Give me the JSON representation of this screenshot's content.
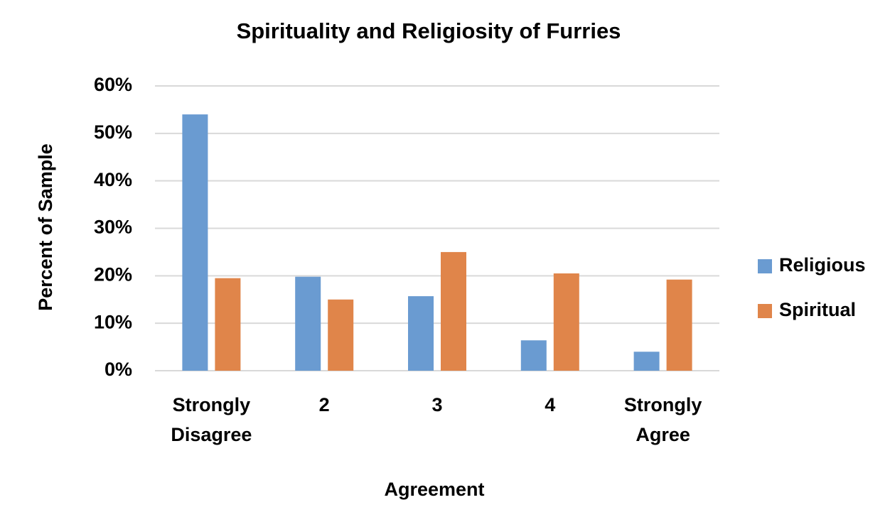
{
  "chart_data": {
    "type": "bar",
    "title": "Spirituality and Religiosity of Furries",
    "x_label": "Agreement",
    "y_label": "Percent of Sample",
    "categories": [
      "Strongly Disagree",
      "2",
      "3",
      "4",
      "Strongly Agree"
    ],
    "series": [
      {
        "name": "Religious",
        "color": "#6a9bd1",
        "values": [
          54.0,
          19.8,
          15.7,
          6.4,
          4.0
        ]
      },
      {
        "name": "Spiritual",
        "color": "#e0854a",
        "values": [
          19.5,
          15.0,
          25.0,
          20.5,
          19.2
        ]
      }
    ],
    "ylim": [
      0,
      60
    ],
    "yticks": [
      {
        "value": 0,
        "label": "0%"
      },
      {
        "value": 10,
        "label": "10%"
      },
      {
        "value": 20,
        "label": "20%"
      },
      {
        "value": 30,
        "label": "30%"
      },
      {
        "value": 40,
        "label": "40%"
      },
      {
        "value": 50,
        "label": "50%"
      },
      {
        "value": 60,
        "label": "60%"
      }
    ],
    "grid": true,
    "legend": "right"
  }
}
